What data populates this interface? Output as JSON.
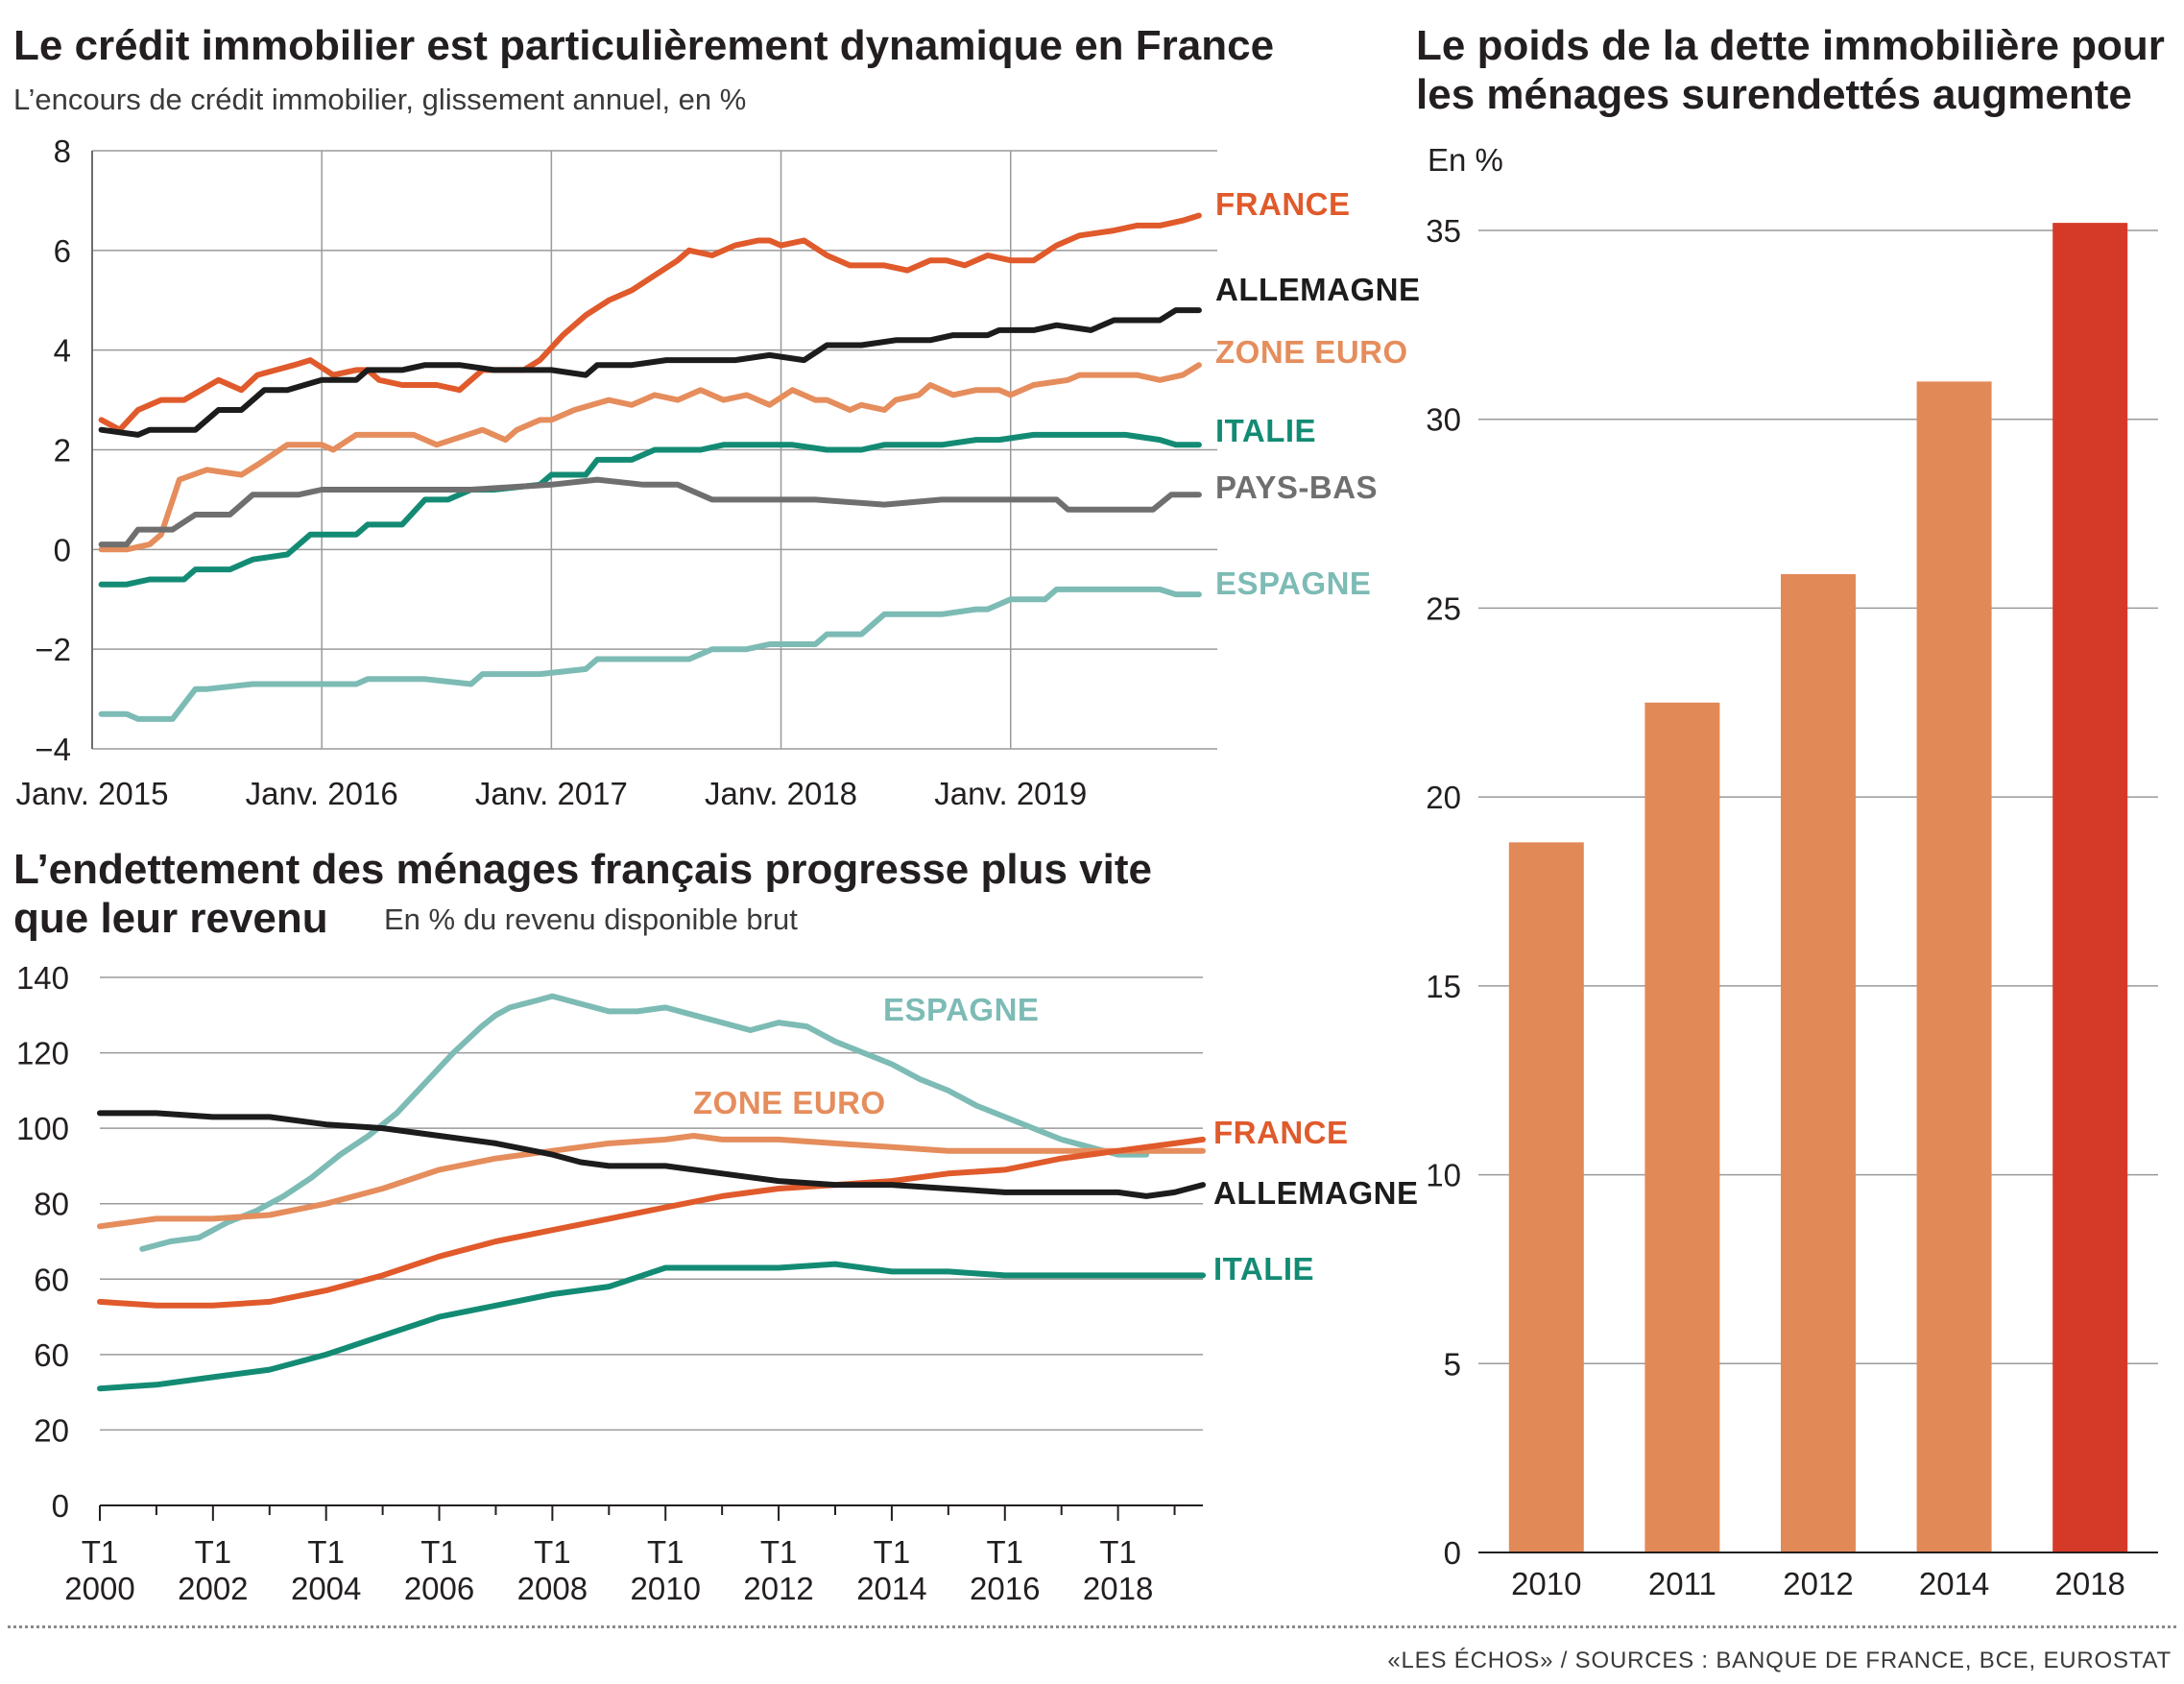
{
  "footer": "«LES ÉCHOS» / SOURCES : BANQUE DE FRANCE, BCE, EUROSTAT",
  "chart_data": [
    {
      "id": "credit",
      "type": "line",
      "title": "Le crédit immobilier est particulièrement dynamique en France",
      "subtitle": "L’encours de crédit immobilier, glissement annuel, en %",
      "y_ticks": [
        "8",
        "6",
        "4",
        "2",
        "0",
        "−2",
        "−4"
      ],
      "ylim": [
        -4,
        8
      ],
      "x_ticks": [
        {
          "label": "Janv. 2015",
          "x": 2015.0
        },
        {
          "label": "Janv. 2016",
          "x": 2016.0
        },
        {
          "label": "Janv. 2017",
          "x": 2017.0
        },
        {
          "label": "Janv. 2018",
          "x": 2018.0
        },
        {
          "label": "Janv. 2019",
          "x": 2019.0
        }
      ],
      "xlim": [
        2015.0,
        2019.9
      ],
      "series": [
        {
          "name": "FRANCE",
          "color": "#e05a2b",
          "x": [
            2015.04,
            2015.12,
            2015.2,
            2015.3,
            2015.4,
            2015.55,
            2015.65,
            2015.72,
            2015.8,
            2015.88,
            2015.95,
            2016.05,
            2016.15,
            2016.2,
            2016.25,
            2016.35,
            2016.5,
            2016.6,
            2016.7,
            2016.8,
            2016.88,
            2016.95,
            2017.05,
            2017.15,
            2017.25,
            2017.35,
            2017.45,
            2017.55,
            2017.6,
            2017.7,
            2017.8,
            2017.9,
            2017.95,
            2018.0,
            2018.1,
            2018.2,
            2018.3,
            2018.4,
            2018.45,
            2018.55,
            2018.65,
            2018.72,
            2018.8,
            2018.9,
            2019.0,
            2019.1,
            2019.2,
            2019.3,
            2019.45,
            2019.55,
            2019.65,
            2019.75,
            2019.82
          ],
          "y": [
            2.6,
            2.4,
            2.8,
            3.0,
            3.0,
            3.4,
            3.2,
            3.5,
            3.6,
            3.7,
            3.8,
            3.5,
            3.6,
            3.6,
            3.4,
            3.3,
            3.3,
            3.2,
            3.6,
            3.6,
            3.6,
            3.8,
            4.3,
            4.7,
            5.0,
            5.2,
            5.5,
            5.8,
            6.0,
            5.9,
            6.1,
            6.2,
            6.2,
            6.1,
            6.2,
            5.9,
            5.7,
            5.7,
            5.7,
            5.6,
            5.8,
            5.8,
            5.7,
            5.9,
            5.8,
            5.8,
            6.1,
            6.3,
            6.4,
            6.5,
            6.5,
            6.6,
            6.7
          ]
        },
        {
          "name": "ALLEMAGNE",
          "color": "#1c1c1c",
          "x": [
            2015.04,
            2015.2,
            2015.25,
            2015.35,
            2015.45,
            2015.55,
            2015.65,
            2015.75,
            2015.85,
            2016.0,
            2016.15,
            2016.2,
            2016.35,
            2016.45,
            2016.6,
            2016.75,
            2016.9,
            2017.0,
            2017.15,
            2017.2,
            2017.35,
            2017.5,
            2017.65,
            2017.8,
            2017.95,
            2018.1,
            2018.2,
            2018.35,
            2018.5,
            2018.65,
            2018.75,
            2018.9,
            2018.95,
            2019.1,
            2019.2,
            2019.35,
            2019.45,
            2019.65,
            2019.72,
            2019.82
          ],
          "y": [
            2.4,
            2.3,
            2.4,
            2.4,
            2.4,
            2.8,
            2.8,
            3.2,
            3.2,
            3.4,
            3.4,
            3.6,
            3.6,
            3.7,
            3.7,
            3.6,
            3.6,
            3.6,
            3.5,
            3.7,
            3.7,
            3.8,
            3.8,
            3.8,
            3.9,
            3.8,
            4.1,
            4.1,
            4.2,
            4.2,
            4.3,
            4.3,
            4.4,
            4.4,
            4.5,
            4.4,
            4.6,
            4.6,
            4.8,
            4.8
          ]
        },
        {
          "name": "ZONE EURO",
          "color": "#e58d5c",
          "x": [
            2015.04,
            2015.15,
            2015.25,
            2015.3,
            2015.38,
            2015.5,
            2015.65,
            2015.72,
            2015.85,
            2016.0,
            2016.05,
            2016.15,
            2016.4,
            2016.5,
            2016.7,
            2016.8,
            2016.85,
            2016.95,
            2017.0,
            2017.1,
            2017.25,
            2017.35,
            2017.45,
            2017.55,
            2017.65,
            2017.75,
            2017.85,
            2017.95,
            2018.05,
            2018.15,
            2018.2,
            2018.3,
            2018.35,
            2018.45,
            2018.5,
            2018.6,
            2018.65,
            2018.75,
            2018.85,
            2018.95,
            2019.0,
            2019.1,
            2019.25,
            2019.3,
            2019.4,
            2019.55,
            2019.65,
            2019.75,
            2019.82
          ],
          "y": [
            0.0,
            0.0,
            0.1,
            0.3,
            1.4,
            1.6,
            1.5,
            1.7,
            2.1,
            2.1,
            2.0,
            2.3,
            2.3,
            2.1,
            2.4,
            2.2,
            2.4,
            2.6,
            2.6,
            2.8,
            3.0,
            2.9,
            3.1,
            3.0,
            3.2,
            3.0,
            3.1,
            2.9,
            3.2,
            3.0,
            3.0,
            2.8,
            2.9,
            2.8,
            3.0,
            3.1,
            3.3,
            3.1,
            3.2,
            3.2,
            3.1,
            3.3,
            3.4,
            3.5,
            3.5,
            3.5,
            3.4,
            3.5,
            3.7
          ]
        },
        {
          "name": "ITALIE",
          "color": "#138b74",
          "x": [
            2015.04,
            2015.15,
            2015.25,
            2015.4,
            2015.45,
            2015.6,
            2015.7,
            2015.85,
            2015.95,
            2016.15,
            2016.2,
            2016.35,
            2016.45,
            2016.55,
            2016.65,
            2016.75,
            2016.95,
            2017.0,
            2017.15,
            2017.2,
            2017.35,
            2017.45,
            2017.65,
            2017.75,
            2017.95,
            2018.05,
            2018.2,
            2018.35,
            2018.45,
            2018.55,
            2018.7,
            2018.85,
            2018.95,
            2019.1,
            2019.2,
            2019.3,
            2019.5,
            2019.65,
            2019.72,
            2019.82
          ],
          "y": [
            -0.7,
            -0.7,
            -0.6,
            -0.6,
            -0.4,
            -0.4,
            -0.2,
            -0.1,
            0.3,
            0.3,
            0.5,
            0.5,
            1.0,
            1.0,
            1.2,
            1.2,
            1.3,
            1.5,
            1.5,
            1.8,
            1.8,
            2.0,
            2.0,
            2.1,
            2.1,
            2.1,
            2.0,
            2.0,
            2.1,
            2.1,
            2.1,
            2.2,
            2.2,
            2.3,
            2.3,
            2.3,
            2.3,
            2.2,
            2.1,
            2.1
          ]
        },
        {
          "name": "PAYS-BAS",
          "color": "#6f6f70",
          "x": [
            2015.04,
            2015.15,
            2015.2,
            2015.35,
            2015.45,
            2015.6,
            2015.7,
            2015.9,
            2016.0,
            2016.35,
            2016.65,
            2017.0,
            2017.2,
            2017.4,
            2017.55,
            2017.7,
            2017.95,
            2018.0,
            2018.15,
            2018.45,
            2018.7,
            2018.9,
            2019.0,
            2019.2,
            2019.25,
            2019.5,
            2019.62,
            2019.7,
            2019.82
          ],
          "y": [
            0.1,
            0.1,
            0.4,
            0.4,
            0.7,
            0.7,
            1.1,
            1.1,
            1.2,
            1.2,
            1.2,
            1.3,
            1.4,
            1.3,
            1.3,
            1.0,
            1.0,
            1.0,
            1.0,
            0.9,
            1.0,
            1.0,
            1.0,
            1.0,
            0.8,
            0.8,
            0.8,
            1.1,
            1.1
          ]
        },
        {
          "name": "ESPAGNE",
          "color": "#7dbbb5",
          "x": [
            2015.04,
            2015.15,
            2015.2,
            2015.35,
            2015.45,
            2015.5,
            2015.7,
            2015.8,
            2015.95,
            2016.05,
            2016.15,
            2016.2,
            2016.35,
            2016.45,
            2016.65,
            2016.7,
            2016.85,
            2016.95,
            2017.15,
            2017.2,
            2017.6,
            2017.7,
            2017.85,
            2017.95,
            2018.05,
            2018.15,
            2018.2,
            2018.35,
            2018.45,
            2018.55,
            2018.7,
            2018.85,
            2018.9,
            2019.0,
            2019.15,
            2019.2,
            2019.35,
            2019.45,
            2019.55,
            2019.65,
            2019.72,
            2019.82
          ],
          "y": [
            -3.3,
            -3.3,
            -3.4,
            -3.4,
            -2.8,
            -2.8,
            -2.7,
            -2.7,
            -2.7,
            -2.7,
            -2.7,
            -2.6,
            -2.6,
            -2.6,
            -2.7,
            -2.5,
            -2.5,
            -2.5,
            -2.4,
            -2.2,
            -2.2,
            -2.0,
            -2.0,
            -1.9,
            -1.9,
            -1.9,
            -1.7,
            -1.7,
            -1.3,
            -1.3,
            -1.3,
            -1.2,
            -1.2,
            -1.0,
            -1.0,
            -0.8,
            -0.8,
            -0.8,
            -0.8,
            -0.8,
            -0.9,
            -0.9
          ]
        }
      ]
    },
    {
      "id": "endettement",
      "type": "line",
      "title": "L’endettement des ménages français progresse plus vite que leur revenu",
      "title_line1": "L’endettement des ménages français progresse plus vite",
      "title_line2": "que leur revenu",
      "subtitle": "En % du revenu disponible brut",
      "y_ticks": [
        "140",
        "120",
        "100",
        "80",
        "60",
        "60",
        "20",
        "0"
      ],
      "ylim": [
        0,
        140
      ],
      "x_ticks": [
        {
          "top": "T1",
          "bottom": "2000",
          "x": 2000
        },
        {
          "top": "T1",
          "bottom": "2002",
          "x": 2002
        },
        {
          "top": "T1",
          "bottom": "2004",
          "x": 2004
        },
        {
          "top": "T1",
          "bottom": "2006",
          "x": 2006
        },
        {
          "top": "T1",
          "bottom": "2008",
          "x": 2008
        },
        {
          "top": "T1",
          "bottom": "2010",
          "x": 2010
        },
        {
          "top": "T1",
          "bottom": "2012",
          "x": 2012
        },
        {
          "top": "T1",
          "bottom": "2014",
          "x": 2014
        },
        {
          "top": "T1",
          "bottom": "2016",
          "x": 2016
        },
        {
          "top": "T1",
          "bottom": "2018",
          "x": 2018
        }
      ],
      "xlim": [
        2000,
        2019.5
      ],
      "series": [
        {
          "name": "ESPAGNE",
          "color": "#7dbbb5",
          "x": [
            2000.75,
            2001.25,
            2001.75,
            2002.25,
            2002.75,
            2003.25,
            2003.75,
            2004.25,
            2004.75,
            2005.25,
            2005.75,
            2006.25,
            2006.75,
            2007.0,
            2007.25,
            2007.5,
            2007.75,
            2008.0,
            2008.5,
            2009.0,
            2009.5,
            2010.0,
            2010.5,
            2011.0,
            2011.5,
            2012.0,
            2012.5,
            2013.0,
            2013.5,
            2014.0,
            2014.5,
            2015.0,
            2015.5,
            2016.0,
            2016.5,
            2017.0,
            2017.5,
            2018.0,
            2018.5
          ],
          "y": [
            68,
            70,
            71,
            75,
            78,
            82,
            87,
            93,
            98,
            104,
            112,
            120,
            127,
            130,
            132,
            133,
            134,
            135,
            133,
            131,
            131,
            132,
            130,
            128,
            126,
            128,
            127,
            123,
            120,
            117,
            113,
            110,
            106,
            103,
            100,
            97,
            95,
            93,
            93
          ]
        },
        {
          "name": "ZONE EURO",
          "color": "#e58d5c",
          "x": [
            2000,
            2001,
            2002,
            2003,
            2004,
            2005,
            2006,
            2007,
            2008,
            2009,
            2010,
            2010.5,
            2011,
            2012,
            2013,
            2014,
            2015,
            2016,
            2017,
            2018,
            2019,
            2019.5
          ],
          "y": [
            74,
            76,
            76,
            77,
            80,
            84,
            89,
            92,
            94,
            96,
            97,
            98,
            97,
            97,
            96,
            95,
            94,
            94,
            94,
            94,
            94,
            94
          ]
        },
        {
          "name": "FRANCE",
          "color": "#e05a2b",
          "x": [
            2000,
            2001,
            2002,
            2003,
            2004,
            2005,
            2006,
            2007,
            2008,
            2009,
            2010,
            2011,
            2012,
            2013,
            2014,
            2015,
            2016,
            2017,
            2018,
            2019,
            2019.5
          ],
          "y": [
            54,
            53,
            53,
            54,
            57,
            61,
            66,
            70,
            73,
            76,
            79,
            82,
            84,
            85,
            86,
            88,
            89,
            92,
            94,
            96,
            97
          ]
        },
        {
          "name": "ALLEMAGNE",
          "color": "#1c1c1c",
          "x": [
            2000,
            2001,
            2002,
            2003,
            2004,
            2005,
            2006,
            2007,
            2008,
            2008.5,
            2009,
            2010,
            2011,
            2012,
            2013,
            2014,
            2015,
            2016,
            2017,
            2018,
            2018.5,
            2019,
            2019.5
          ],
          "y": [
            104,
            104,
            103,
            103,
            101,
            100,
            98,
            96,
            93,
            91,
            90,
            90,
            88,
            86,
            85,
            85,
            84,
            83,
            83,
            83,
            82,
            83,
            85
          ]
        },
        {
          "name": "ITALIE",
          "color": "#138b74",
          "x": [
            2000,
            2001,
            2002,
            2003,
            2004,
            2005,
            2006,
            2007,
            2008,
            2009,
            2010,
            2011,
            2012,
            2013,
            2014,
            2015,
            2016,
            2017,
            2018,
            2019,
            2019.5
          ],
          "y": [
            31,
            32,
            34,
            36,
            40,
            45,
            50,
            53,
            56,
            58,
            63,
            63,
            63,
            64,
            62,
            62,
            61,
            61,
            61,
            61,
            61
          ]
        }
      ],
      "label_colors": {
        "ESPAGNE": "#7dbbb5",
        "ZONE EURO": "#e58d5c",
        "FRANCE": "#e05a2b",
        "ALLEMAGNE": "#1c1c1c",
        "ITALIE": "#138b74"
      }
    },
    {
      "id": "surendettes",
      "type": "bar",
      "title": "Le poids de la dette immobilière pour les ménages surendettés augmente",
      "title_line1": "Le poids de la dette immobilière pour",
      "title_line2": "les ménages surendettés augmente",
      "ylabel": "En %",
      "y_ticks": [
        "35",
        "30",
        "25",
        "20",
        "15",
        "10",
        "5",
        "0"
      ],
      "ylim": [
        0,
        35
      ],
      "categories": [
        "2010",
        "2011",
        "2012",
        "2014",
        "2018"
      ],
      "values": [
        18.8,
        22.5,
        25.9,
        31.0,
        35.2
      ],
      "colors": [
        "#e28958",
        "#e28958",
        "#e28958",
        "#e28958",
        "#d53a28"
      ]
    }
  ]
}
